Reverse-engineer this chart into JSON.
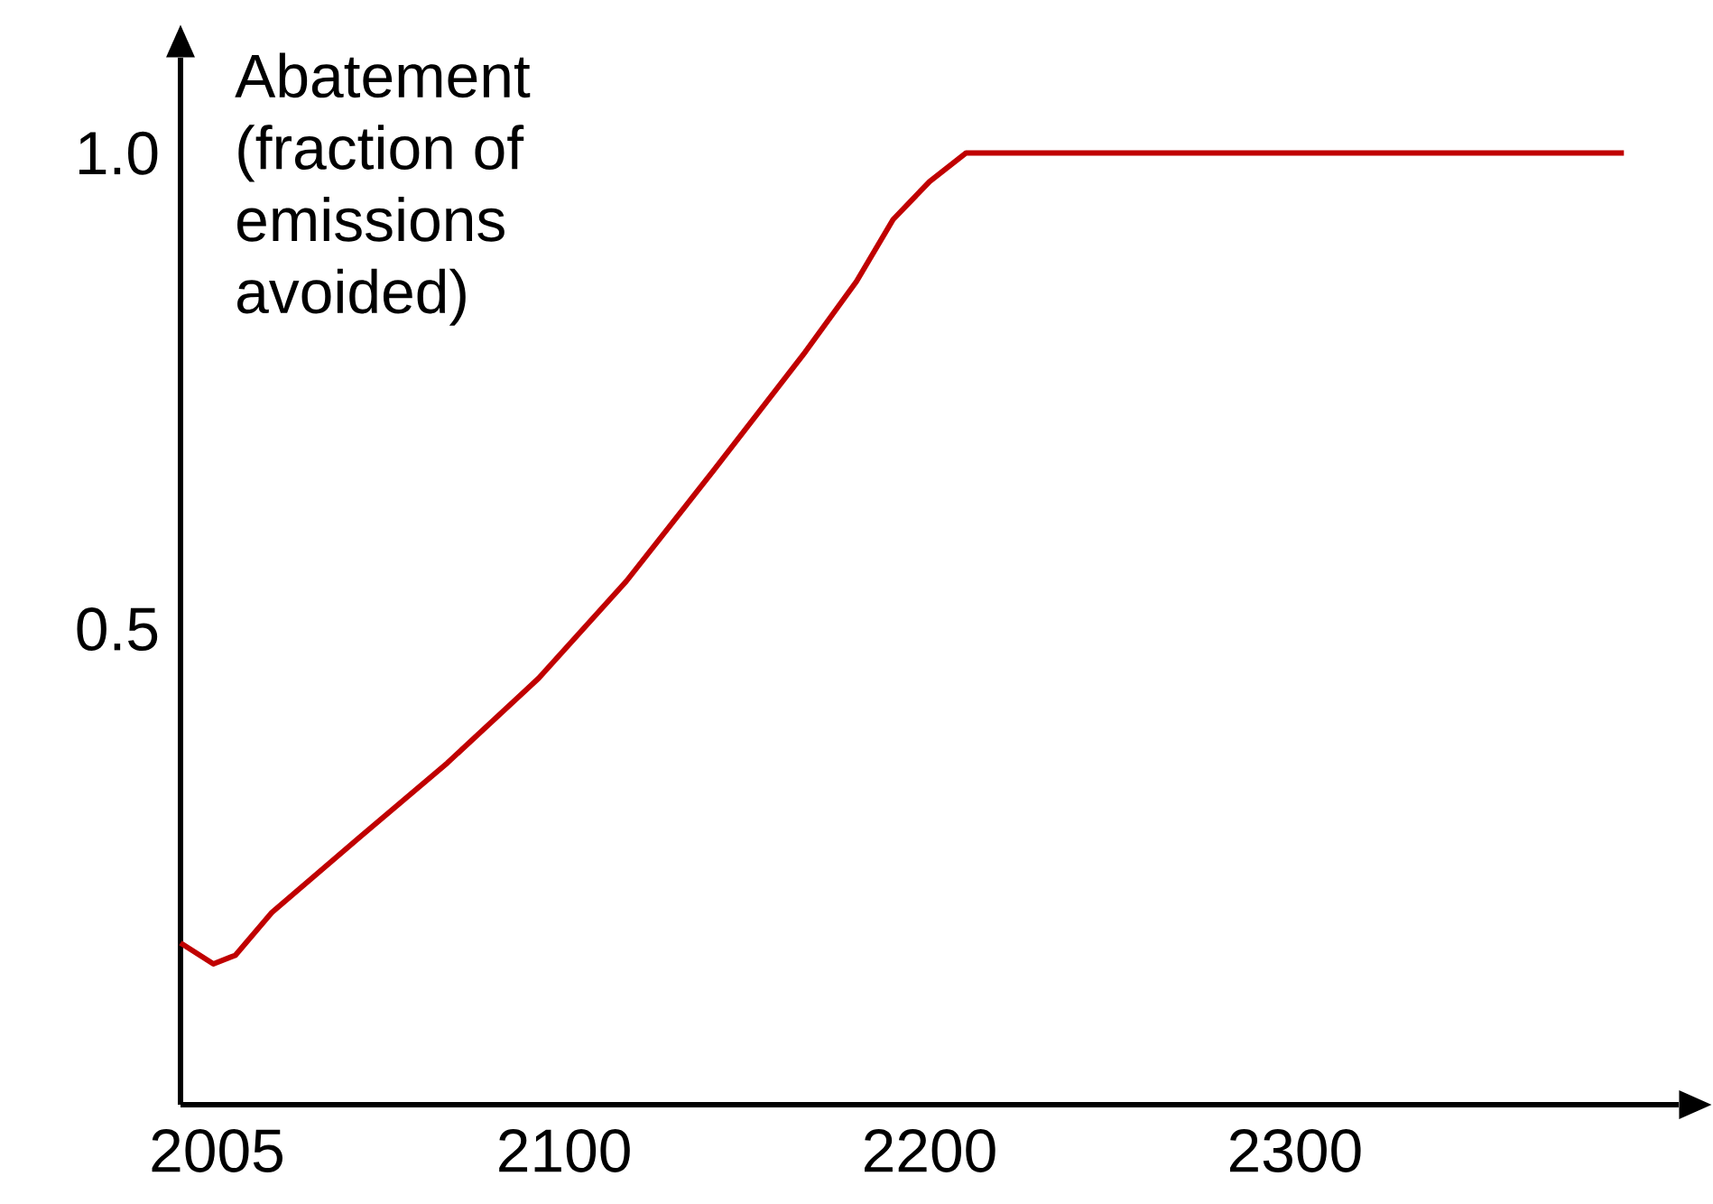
{
  "chart_data": {
    "type": "line",
    "ylabel": "Abatement (fraction of emissions avoided)",
    "x": [
      1995,
      2004,
      2010,
      2020,
      2044,
      2068,
      2093,
      2117,
      2141,
      2166,
      2180,
      2190,
      2200,
      2210,
      2300,
      2390
    ],
    "series": [
      {
        "color": "#c00000",
        "values": [
          0.17,
          0.148,
          0.157,
          0.202,
          0.281,
          0.359,
          0.448,
          0.55,
          0.667,
          0.791,
          0.865,
          0.93,
          0.97,
          1.0,
          1.0,
          1.0
        ]
      }
    ],
    "xlim": [
      1995,
      2405
    ],
    "ylim": [
      0,
      1.1
    ],
    "xticks": [
      2005,
      2100,
      2200,
      2300
    ],
    "yticks": [
      {
        "value": 0.5,
        "label": "0.5"
      },
      {
        "value": 1.0,
        "label": "1.0"
      }
    ],
    "grid": false,
    "marker": "none",
    "line_style": "solid"
  }
}
